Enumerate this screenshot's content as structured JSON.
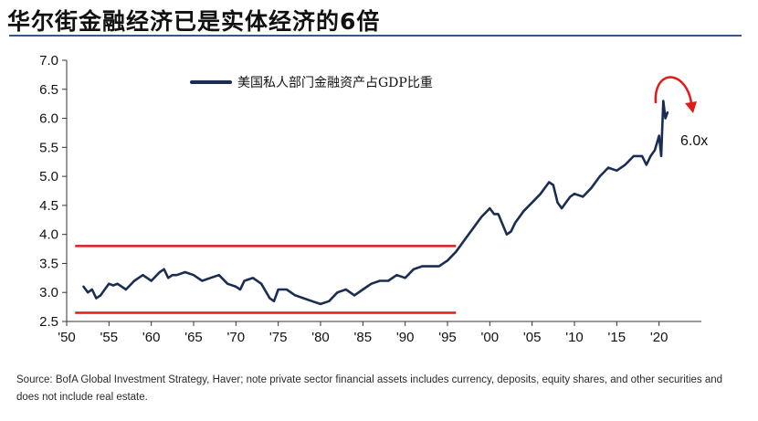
{
  "page_title": "华尔街金融经济已是实体经济的6倍",
  "source_note": "Source: BofA Global Investment Strategy, Haver; note private sector financial assets includes currency, deposits, equity shares, and other securities and does not include real estate.",
  "colors": {
    "series": "#1b2d52",
    "threshold": "#e01b1b",
    "axis": "#333333",
    "title_rule": "#2e5b8c"
  },
  "chart_data": {
    "type": "line",
    "title": "",
    "xlabel": "",
    "ylabel": "",
    "xlim": [
      1950,
      2025
    ],
    "ylim": [
      2.5,
      7.0
    ],
    "yticks": [
      2.5,
      3.0,
      3.5,
      4.0,
      4.5,
      5.0,
      5.5,
      6.0,
      6.5,
      7.0
    ],
    "ytick_labels": [
      "2.5",
      "3.0",
      "3.5",
      "4.0",
      "4.5",
      "5.0",
      "5.5",
      "6.0",
      "6.5",
      "7.0"
    ],
    "xticks": [
      1950,
      1955,
      1960,
      1965,
      1970,
      1975,
      1980,
      1985,
      1990,
      1995,
      2000,
      2005,
      2010,
      2015,
      2020
    ],
    "xtick_labels": [
      "'50",
      "'55",
      "'60",
      "'65",
      "'70",
      "'75",
      "'80",
      "'85",
      "'90",
      "'95",
      "'00",
      "'05",
      "'10",
      "'15",
      "'20"
    ],
    "legend": {
      "label": "美国私人部门金融资产占GDP比重",
      "position": "top-left"
    },
    "series": [
      {
        "name": "美国私人部门金融资产占GDP比重",
        "x": [
          1952,
          1952.5,
          1953,
          1953.5,
          1954,
          1954.5,
          1955,
          1955.5,
          1956,
          1957,
          1958,
          1958.5,
          1959,
          1960,
          1961,
          1961.5,
          1962,
          1962.5,
          1963,
          1964,
          1965,
          1965.5,
          1966,
          1967,
          1968,
          1969,
          1970,
          1970.5,
          1971,
          1972,
          1973,
          1974,
          1974.5,
          1975,
          1976,
          1977,
          1978,
          1979,
          1980,
          1981,
          1982,
          1983,
          1984,
          1985,
          1986,
          1987,
          1988,
          1989,
          1990,
          1991,
          1992,
          1993,
          1994,
          1995,
          1996,
          1997,
          1998,
          1999,
          2000,
          2000.5,
          2001,
          2002,
          2002.5,
          2003,
          2004,
          2005,
          2006,
          2007,
          2007.5,
          2008,
          2008.5,
          2009,
          2009.5,
          2010,
          2011,
          2012,
          2013,
          2014,
          2015,
          2016,
          2017,
          2018,
          2018.5,
          2019,
          2019.5,
          2020,
          2020.25,
          2020.5,
          2020.75,
          2021
        ],
        "values": [
          3.1,
          3.0,
          3.05,
          2.9,
          2.95,
          3.05,
          3.15,
          3.12,
          3.15,
          3.05,
          3.2,
          3.25,
          3.3,
          3.2,
          3.35,
          3.4,
          3.25,
          3.3,
          3.3,
          3.35,
          3.3,
          3.25,
          3.2,
          3.25,
          3.3,
          3.15,
          3.1,
          3.05,
          3.2,
          3.25,
          3.15,
          2.9,
          2.85,
          3.05,
          3.05,
          2.95,
          2.9,
          2.85,
          2.8,
          2.85,
          3.0,
          3.05,
          2.95,
          3.05,
          3.15,
          3.2,
          3.2,
          3.3,
          3.25,
          3.4,
          3.45,
          3.45,
          3.45,
          3.55,
          3.7,
          3.9,
          4.1,
          4.3,
          4.45,
          4.35,
          4.35,
          4.0,
          4.05,
          4.2,
          4.4,
          4.55,
          4.7,
          4.9,
          4.85,
          4.55,
          4.45,
          4.55,
          4.65,
          4.7,
          4.65,
          4.8,
          5.0,
          5.15,
          5.1,
          5.2,
          5.35,
          5.35,
          5.2,
          5.35,
          5.45,
          5.7,
          5.35,
          6.3,
          6.0,
          6.1
        ]
      }
    ],
    "reference_lines": [
      {
        "value": 3.8,
        "x_range": [
          1951,
          1996
        ]
      },
      {
        "value": 2.65,
        "x_range": [
          1951,
          1996
        ]
      }
    ],
    "annotations": [
      {
        "text": "6.0x",
        "note": "curved red arrow over the 2020 peak"
      }
    ]
  }
}
